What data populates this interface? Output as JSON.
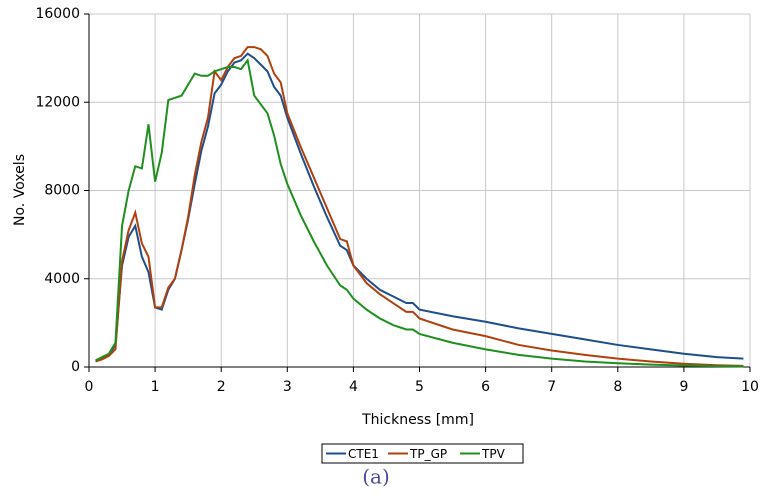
{
  "chart_data": {
    "type": "line",
    "x_label": "Thickness [mm]",
    "y_label": "No. Voxels",
    "caption": "(a)",
    "x": [
      0.1,
      0.2,
      0.3,
      0.4,
      0.5,
      0.6,
      0.7,
      0.8,
      0.9,
      1.0,
      1.1,
      1.2,
      1.3,
      1.4,
      1.5,
      1.6,
      1.7,
      1.8,
      1.9,
      2.0,
      2.1,
      2.2,
      2.3,
      2.4,
      2.5,
      2.6,
      2.7,
      2.8,
      2.9,
      3.0,
      3.2,
      3.4,
      3.6,
      3.8,
      3.9,
      4.0,
      4.2,
      4.4,
      4.6,
      4.8,
      4.9,
      5.0,
      5.5,
      6.0,
      6.5,
      7,
      7.5,
      8,
      8.5,
      9,
      9.5,
      9.9
    ],
    "series": [
      {
        "name": "CTE1",
        "color": "#1f4e8c",
        "values": [
          250,
          400,
          550,
          1000,
          4600,
          5900,
          6400,
          5000,
          4300,
          2700,
          2600,
          3500,
          4000,
          5300,
          6700,
          8300,
          9800,
          10900,
          12400,
          12800,
          13400,
          13800,
          13900,
          14200,
          14000,
          13700,
          13400,
          12700,
          12300,
          11300,
          9700,
          8200,
          6800,
          5500,
          5300,
          4600,
          4000,
          3500,
          3200,
          2900,
          2900,
          2600,
          2300,
          2050,
          1750,
          1500,
          1250,
          1000,
          800,
          600,
          450,
          380
        ]
      },
      {
        "name": "TP_GP",
        "color": "#b0410e",
        "values": [
          250,
          350,
          500,
          800,
          4800,
          6200,
          7000,
          5600,
          5000,
          2700,
          2700,
          3600,
          4000,
          5300,
          6800,
          8700,
          10200,
          11300,
          13400,
          13000,
          13600,
          14000,
          14100,
          14500,
          14500,
          14400,
          14100,
          13300,
          12900,
          11500,
          10000,
          8600,
          7200,
          5800,
          5700,
          4600,
          3800,
          3300,
          2900,
          2500,
          2500,
          2200,
          1700,
          1400,
          1000,
          750,
          550,
          380,
          250,
          150,
          80,
          50
        ]
      },
      {
        "name": "TPV",
        "color": "#1f8f1f",
        "values": [
          300,
          450,
          600,
          1100,
          6400,
          8000,
          9100,
          9000,
          11000,
          8400,
          9700,
          12100,
          12200,
          12300,
          12800,
          13300,
          13200,
          13200,
          13400,
          13500,
          13600,
          13600,
          13500,
          13900,
          12300,
          11900,
          11500,
          10500,
          9200,
          8300,
          6900,
          5700,
          4600,
          3700,
          3500,
          3100,
          2600,
          2200,
          1900,
          1700,
          1700,
          1500,
          1100,
          800,
          550,
          380,
          250,
          170,
          110,
          70,
          40,
          30
        ]
      }
    ],
    "xlim": [
      0,
      10
    ],
    "xticks": [
      0,
      1,
      2,
      3,
      4,
      5,
      6,
      7,
      8,
      9,
      10
    ],
    "ylim": [
      0,
      16000
    ],
    "yticks": [
      0,
      4000,
      8000,
      12000,
      16000
    ],
    "grid": true,
    "legend": "bottom"
  }
}
